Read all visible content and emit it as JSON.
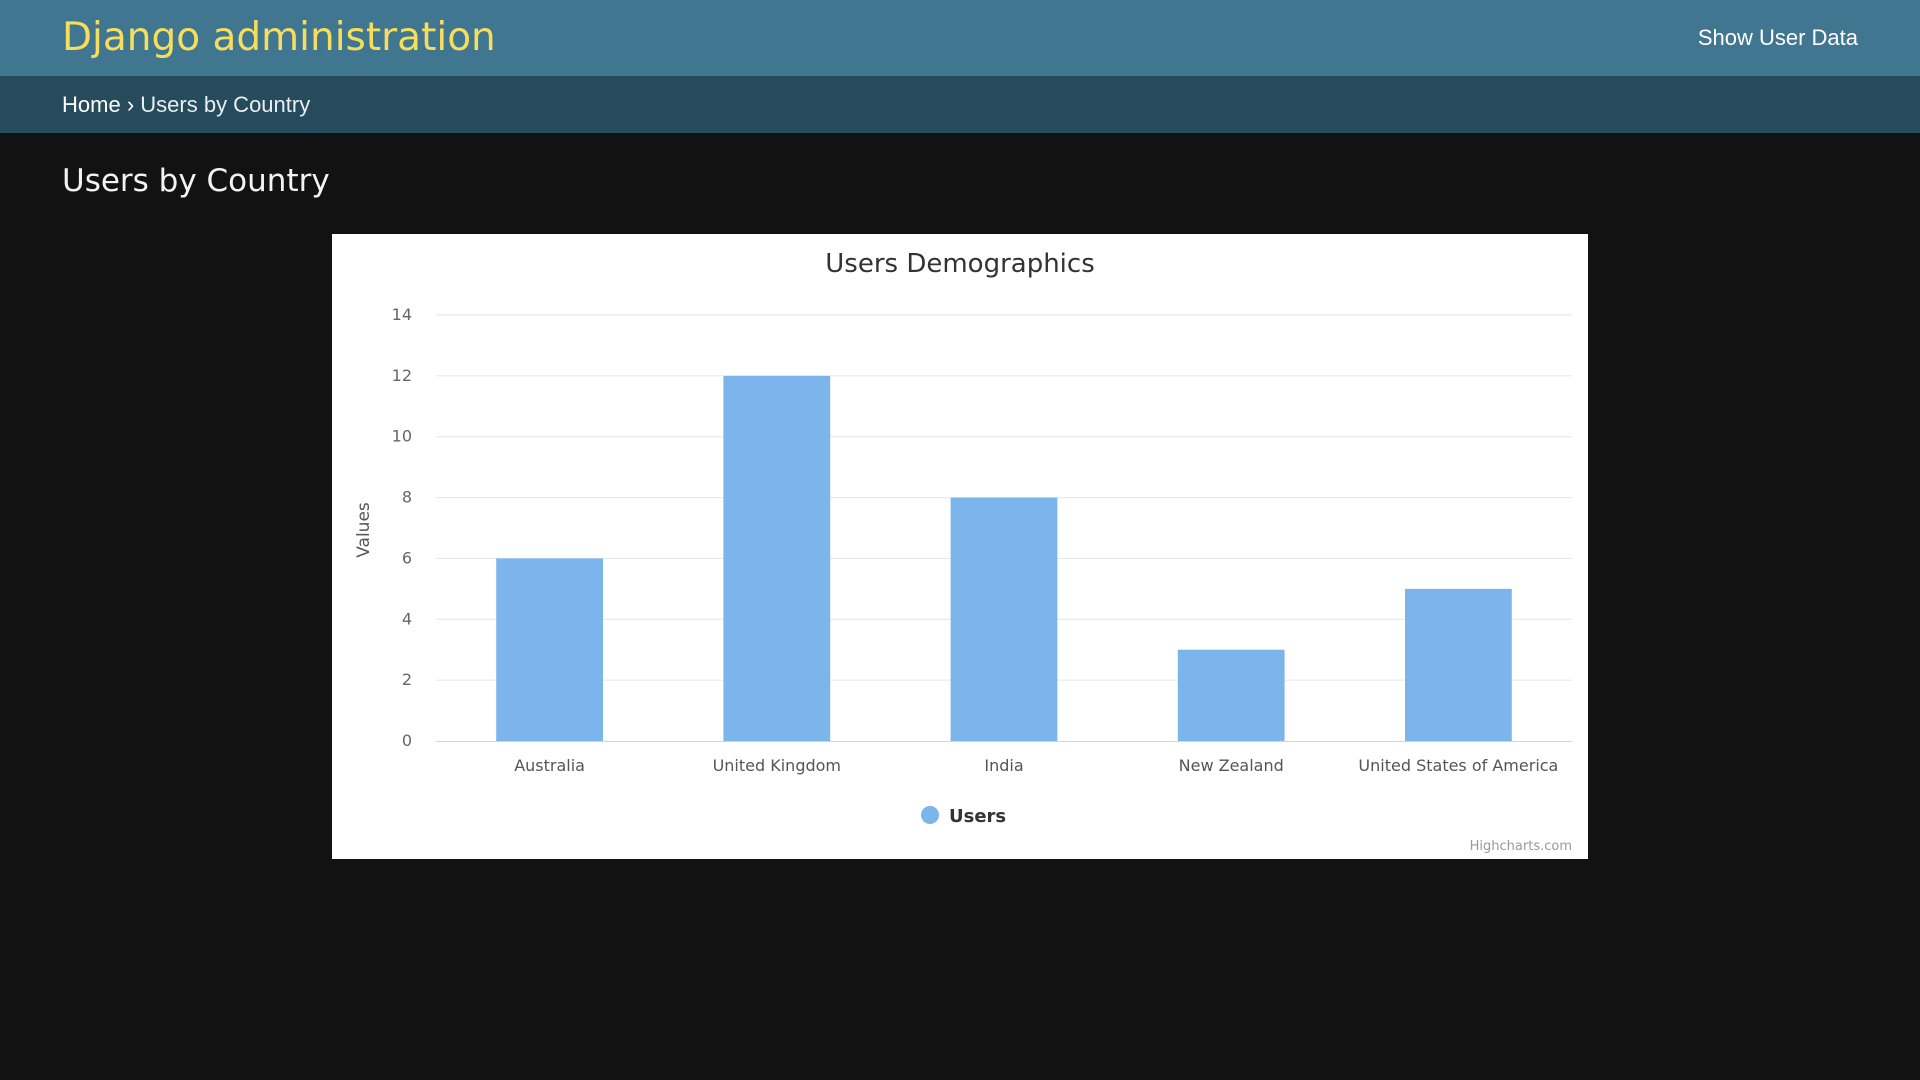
{
  "header": {
    "branding": "Django administration",
    "user_tools_link": "Show User Data"
  },
  "breadcrumbs": {
    "home": "Home",
    "separator": "›",
    "current": "Users by Country"
  },
  "page": {
    "title": "Users by Country"
  },
  "colors": {
    "header_bg": "#417690",
    "breadcrumbs_bg": "#264b5d",
    "branding": "#f5dd5d",
    "page_bg": "#121212",
    "bar": "#7cb5ec"
  },
  "chart_data": {
    "type": "bar",
    "title": "Users Demographics",
    "xlabel": "",
    "ylabel": "Values",
    "categories": [
      "Australia",
      "United Kingdom",
      "India",
      "New Zealand",
      "United States of America"
    ],
    "series": [
      {
        "name": "Users",
        "values": [
          6,
          12,
          8,
          3,
          5
        ],
        "color": "#7cb5ec"
      }
    ],
    "ylim": [
      0,
      14
    ],
    "yticks": [
      0,
      2,
      4,
      6,
      8,
      10,
      12,
      14
    ],
    "grid": true,
    "legend": "bottom-center",
    "credits": "Highcharts.com"
  }
}
